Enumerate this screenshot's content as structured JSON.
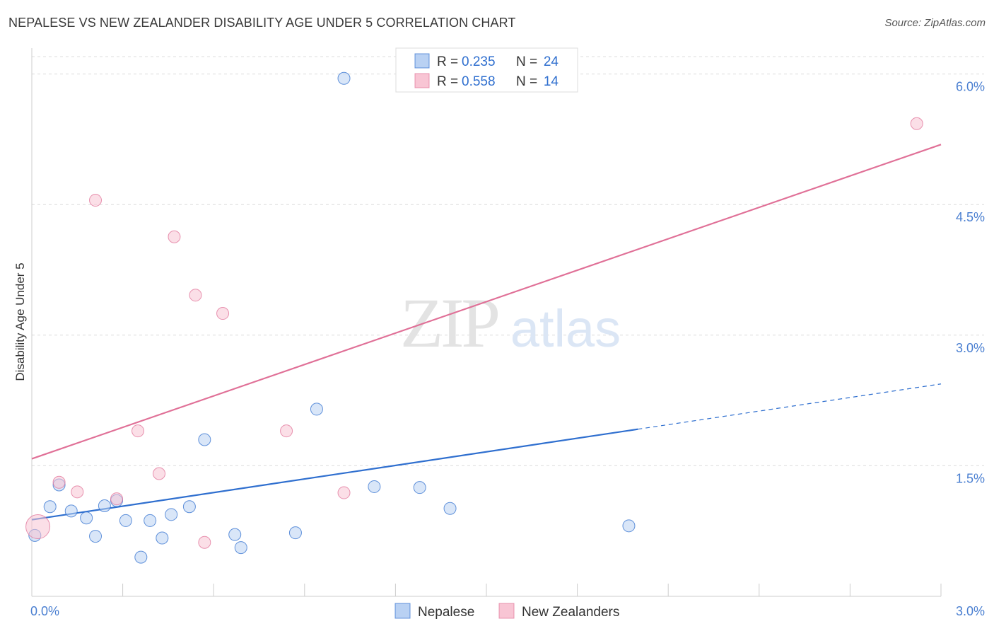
{
  "title": "NEPALESE VS NEW ZEALANDER DISABILITY AGE UNDER 5 CORRELATION CHART",
  "source": "Source: ZipAtlas.com",
  "watermark": {
    "zip": "ZIP",
    "atlas": "atlas"
  },
  "colors": {
    "blue": "#2f6fcf",
    "blue_fill": "#b9d1f3",
    "pink": "#e07097",
    "pink_fill": "#f8c5d4",
    "tick": "#4a7fd1"
  },
  "chart_data": {
    "type": "scatter",
    "xlabel": "",
    "ylabel": "Disability Age Under 5",
    "xlim": [
      0,
      3.0
    ],
    "ylim": [
      0,
      6.2
    ],
    "x_tick_labels": [
      {
        "v": 0,
        "t": "0.0%"
      },
      {
        "v": 3.0,
        "t": "3.0%"
      }
    ],
    "y_tick_labels": [
      {
        "v": 1.5,
        "t": "1.5%"
      },
      {
        "v": 3.0,
        "t": "3.0%"
      },
      {
        "v": 4.5,
        "t": "4.5%"
      },
      {
        "v": 6.0,
        "t": "6.0%"
      }
    ],
    "grid": true,
    "legend_top": [
      {
        "r_label": "R = ",
        "r": "0.235",
        "n_label": "N = ",
        "n": "24",
        "series": "blue"
      },
      {
        "r_label": "R = ",
        "r": "0.558",
        "n_label": "N = ",
        "n": "14",
        "series": "pink"
      }
    ],
    "series": [
      {
        "name": "Nepalese",
        "color": "blue",
        "points": [
          [
            0.01,
            0.7
          ],
          [
            0.06,
            1.03
          ],
          [
            0.09,
            1.28
          ],
          [
            0.13,
            0.98
          ],
          [
            0.18,
            0.9
          ],
          [
            0.21,
            0.69
          ],
          [
            0.24,
            1.04
          ],
          [
            0.28,
            1.1
          ],
          [
            0.31,
            0.87
          ],
          [
            0.36,
            0.45
          ],
          [
            0.39,
            0.87
          ],
          [
            0.43,
            0.67
          ],
          [
            0.46,
            0.94
          ],
          [
            0.52,
            1.03
          ],
          [
            0.57,
            1.8
          ],
          [
            0.67,
            0.71
          ],
          [
            0.69,
            0.56
          ],
          [
            0.87,
            0.73
          ],
          [
            0.94,
            2.15
          ],
          [
            1.03,
            5.95
          ],
          [
            1.13,
            1.26
          ],
          [
            1.28,
            1.25
          ],
          [
            1.38,
            1.01
          ],
          [
            1.97,
            0.81
          ]
        ],
        "trend": {
          "x0": 0.0,
          "y0": 0.88,
          "x1": 2.0,
          "y1": 1.92,
          "dash_to_x": 3.0,
          "dash_to_y": 2.44
        }
      },
      {
        "name": "New Zealanders",
        "color": "pink",
        "points": [
          [
            0.02,
            0.8
          ],
          [
            0.09,
            1.31
          ],
          [
            0.15,
            1.2
          ],
          [
            0.21,
            4.55
          ],
          [
            0.28,
            1.12
          ],
          [
            0.35,
            1.9
          ],
          [
            0.42,
            1.41
          ],
          [
            0.47,
            4.13
          ],
          [
            0.54,
            3.46
          ],
          [
            0.57,
            0.62
          ],
          [
            0.63,
            3.25
          ],
          [
            0.84,
            1.9
          ],
          [
            1.03,
            1.19
          ],
          [
            2.92,
            5.43
          ]
        ],
        "trend": {
          "x0": 0.0,
          "y0": 1.58,
          "x1": 3.0,
          "y1": 5.19
        }
      }
    ]
  },
  "bottom_legend": [
    {
      "label": "Nepalese",
      "series": "blue"
    },
    {
      "label": "New Zealanders",
      "series": "pink"
    }
  ]
}
